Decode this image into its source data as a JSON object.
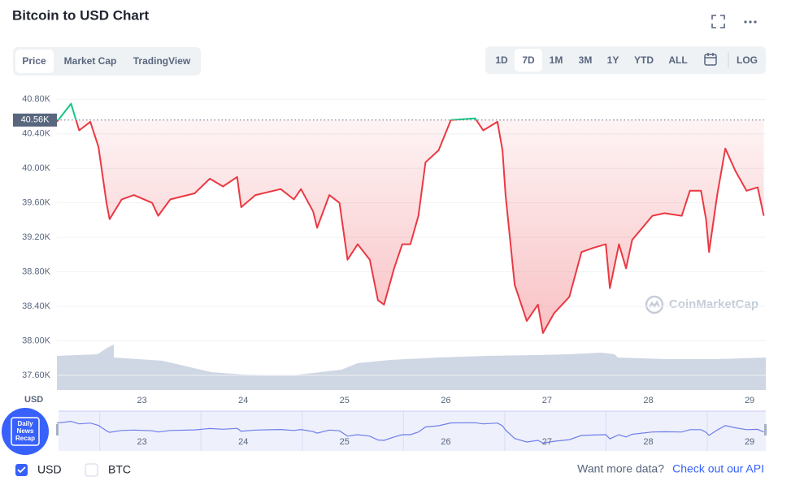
{
  "header": {
    "title": "Bitcoin to USD Chart"
  },
  "tabs": [
    "Price",
    "Market Cap",
    "TradingView"
  ],
  "ranges": [
    "1D",
    "7D",
    "1M",
    "3M",
    "1Y",
    "YTD",
    "ALL",
    "LOG"
  ],
  "chart_data": {
    "type": "line",
    "x": [
      22.16,
      22.3,
      22.38,
      22.49,
      22.57,
      22.65,
      22.68,
      22.8,
      22.92,
      23.1,
      23.16,
      23.28,
      23.52,
      23.67,
      23.8,
      23.94,
      23.98,
      24.12,
      24.37,
      24.5,
      24.57,
      24.69,
      24.73,
      24.85,
      24.95,
      25.03,
      25.13,
      25.25,
      25.33,
      25.39,
      25.49,
      25.57,
      25.65,
      25.73,
      25.8,
      25.93,
      26.05,
      26.29,
      26.37,
      26.51,
      26.56,
      26.59,
      26.68,
      26.8,
      26.91,
      26.96,
      27.07,
      27.22,
      27.34,
      27.46,
      27.58,
      27.62,
      27.71,
      27.78,
      27.84,
      28.04,
      28.16,
      28.33,
      28.41,
      28.52,
      28.57,
      28.6,
      28.68,
      28.76,
      28.86,
      28.97,
      29.08,
      29.14
    ],
    "values": [
      40540,
      40750,
      40440,
      40540,
      40250,
      39600,
      39410,
      39640,
      39690,
      39600,
      39450,
      39640,
      39710,
      39880,
      39790,
      39900,
      39550,
      39690,
      39760,
      39640,
      39760,
      39500,
      39310,
      39690,
      39600,
      38940,
      39120,
      38940,
      38470,
      38420,
      38840,
      39120,
      39120,
      39450,
      40070,
      40210,
      40560,
      40580,
      40440,
      40540,
      40210,
      39690,
      38650,
      38230,
      38420,
      38090,
      38320,
      38510,
      39030,
      39080,
      39120,
      38610,
      39120,
      38840,
      39170,
      39450,
      39480,
      39450,
      39740,
      39740,
      39410,
      39030,
      39690,
      40230,
      39970,
      39740,
      39780,
      39450
    ],
    "color": "#ea3943",
    "up_color": "#16c784",
    "xlim": [
      22.16,
      29.16
    ],
    "xticks": [
      23,
      24,
      25,
      26,
      27,
      28,
      29
    ],
    "ylim": [
      37430,
      41010
    ],
    "yticks": [
      {
        "value": 37600,
        "label": "37.60K"
      },
      {
        "value": 38000,
        "label": "38.00K"
      },
      {
        "value": 38400,
        "label": "38.40K"
      },
      {
        "value": 38800,
        "label": "38.80K"
      },
      {
        "value": 39200,
        "label": "39.20K"
      },
      {
        "value": 39600,
        "label": "39.60K"
      },
      {
        "value": 40000,
        "label": "40.00K"
      },
      {
        "value": 40400,
        "label": "40.40K"
      },
      {
        "value": 40800,
        "label": "40.80K"
      }
    ],
    "current_price": {
      "value": 40560,
      "label": "40.56K"
    },
    "y_unit": "USD",
    "grid": true,
    "watermark": "CoinMarketCap"
  },
  "badge": [
    "Daily",
    "News",
    "Recap"
  ],
  "footer": {
    "options": [
      "USD",
      "BTC"
    ],
    "prompt": "Want more data?",
    "link": "Check out our API"
  }
}
